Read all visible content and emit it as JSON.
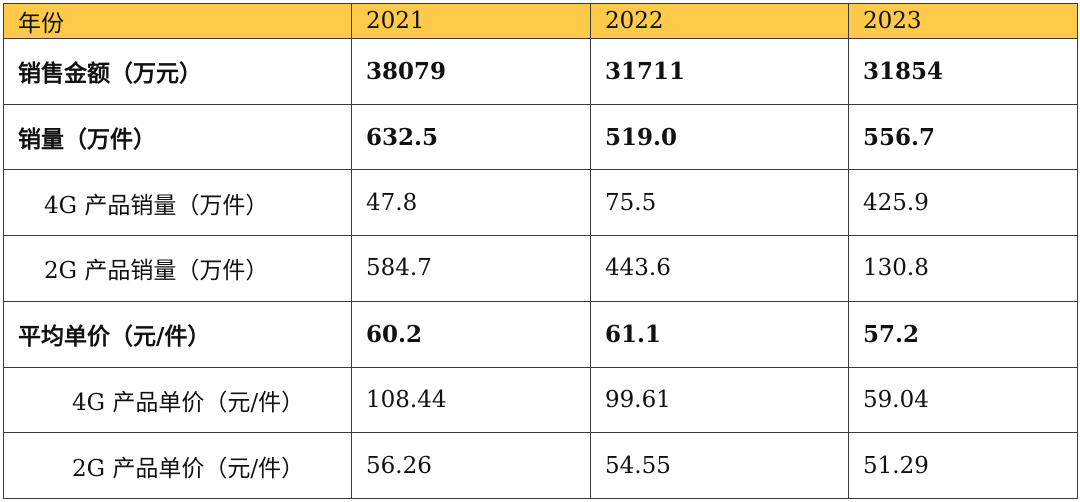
{
  "table": {
    "header_color": "#FFC94A",
    "headers": [
      "年份",
      "2021",
      "2022",
      "2023"
    ],
    "rows": [
      {
        "label": "销售金额（万元）",
        "level": 0,
        "values": [
          "38079",
          "31711",
          "31854"
        ]
      },
      {
        "label": "销量（万件）",
        "level": 0,
        "values": [
          "632.5",
          "519.0",
          "556.7"
        ]
      },
      {
        "label": "4G 产品销量（万件）",
        "level": 1,
        "values": [
          "47.8",
          "75.5",
          "425.9"
        ]
      },
      {
        "label": "2G 产品销量（万件）",
        "level": 1,
        "values": [
          "584.7",
          "443.6",
          "130.8"
        ]
      },
      {
        "label": "平均单价（元/件）",
        "level": 0,
        "values": [
          "60.2",
          "61.1",
          "57.2"
        ]
      },
      {
        "label": "4G 产品单价（元/件）",
        "level": 2,
        "values": [
          "108.44",
          "99.61",
          "59.04"
        ]
      },
      {
        "label": "2G 产品单价（元/件）",
        "level": 2,
        "values": [
          "56.26",
          "54.55",
          "51.29"
        ]
      }
    ]
  }
}
